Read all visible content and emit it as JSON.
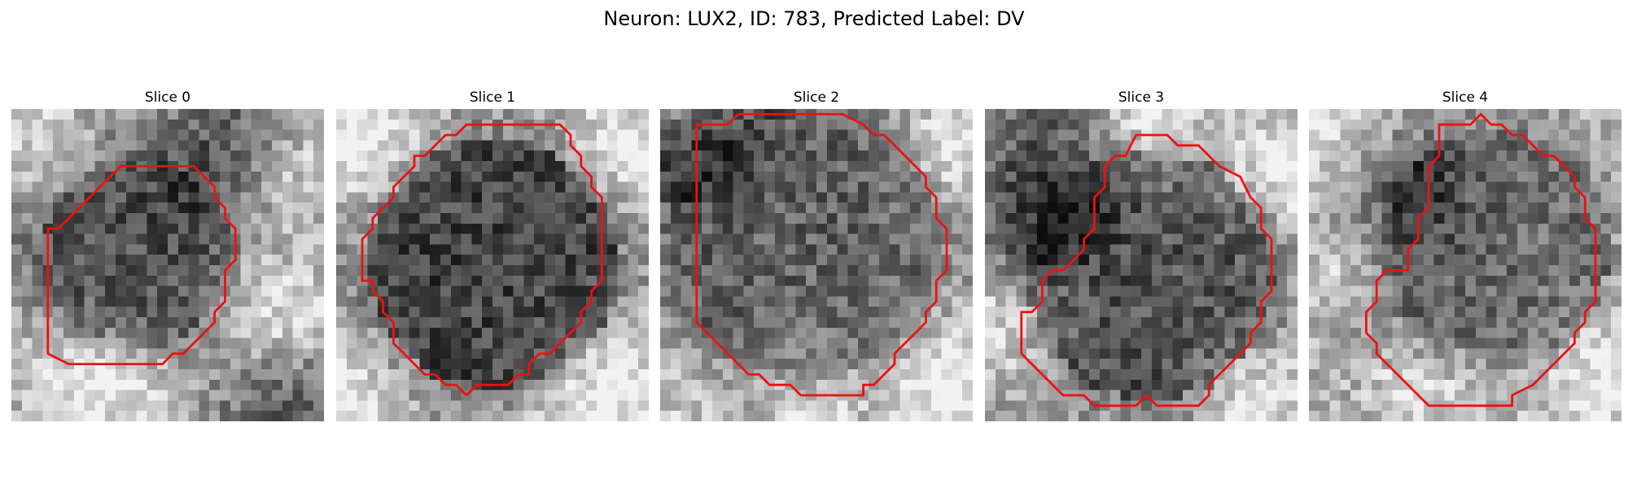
{
  "figure": {
    "title": "Neuron: LUX2, ID: 783, Predicted Label: DV"
  },
  "panels": [
    {
      "title": "Slice 0",
      "contour_color": "#ee1111",
      "base": 0.42,
      "cell": {
        "cx": 12,
        "cy": 14,
        "r": 9,
        "dark": -0.12
      },
      "bright": [
        {
          "cx": 3,
          "cy": 3,
          "r": 4,
          "v": 0.3
        },
        {
          "cx": 28,
          "cy": 6,
          "r": 4,
          "v": 0.25
        },
        {
          "cx": 4,
          "cy": 26,
          "r": 5,
          "v": 0.25
        },
        {
          "cx": 26,
          "cy": 20,
          "r": 5,
          "v": 0.35
        },
        {
          "cx": 11,
          "cy": 27,
          "r": 4,
          "v": 0.3
        }
      ],
      "dark": [
        {
          "cx": 20,
          "cy": 4,
          "r": 4,
          "v": -0.2
        },
        {
          "cx": 26,
          "cy": 27,
          "r": 4,
          "v": -0.25
        }
      ],
      "contour": [
        [
          10.5,
          5.5
        ],
        [
          17.5,
          5.5
        ],
        [
          19.5,
          7.5
        ],
        [
          19.5,
          8.5
        ],
        [
          20.5,
          9.5
        ],
        [
          20.5,
          10.5
        ],
        [
          21.5,
          11.5
        ],
        [
          21.5,
          14.5
        ],
        [
          20.5,
          15.5
        ],
        [
          20.5,
          18.5
        ],
        [
          19.5,
          19.5
        ],
        [
          19.5,
          20.5
        ],
        [
          18.5,
          21.5
        ],
        [
          16.5,
          23.5
        ],
        [
          15.5,
          23.5
        ],
        [
          14.5,
          24.5
        ],
        [
          5.5,
          24.5
        ],
        [
          3.5,
          23.5
        ],
        [
          3.5,
          11.5
        ],
        [
          4.5,
          11.5
        ],
        [
          9.5,
          6.5
        ]
      ]
    },
    {
      "title": "Slice 1",
      "contour_color": "#ee1111",
      "base": 0.5,
      "cell": {
        "cx": 15,
        "cy": 15,
        "r": 12,
        "dark": -0.25
      },
      "bright": [
        {
          "cx": 2,
          "cy": 2,
          "r": 5,
          "v": 0.35
        },
        {
          "cx": 28,
          "cy": 3,
          "r": 4,
          "v": 0.3
        },
        {
          "cx": 1,
          "cy": 28,
          "r": 4,
          "v": 0.3
        },
        {
          "cx": 26,
          "cy": 27,
          "r": 5,
          "v": 0.35
        }
      ],
      "dark": [],
      "contour": [
        [
          12.5,
          1.5
        ],
        [
          21.5,
          1.5
        ],
        [
          22.5,
          2.5
        ],
        [
          22.5,
          3.5
        ],
        [
          23.5,
          4.5
        ],
        [
          23.5,
          5.5
        ],
        [
          24.5,
          6.5
        ],
        [
          24.5,
          7.5
        ],
        [
          25.5,
          8.5
        ],
        [
          25.5,
          16.5
        ],
        [
          24.5,
          17.5
        ],
        [
          24.5,
          18.5
        ],
        [
          23.5,
          19.5
        ],
        [
          23.5,
          20.5
        ],
        [
          22.5,
          21.5
        ],
        [
          21.5,
          22.5
        ],
        [
          20.5,
          23.5
        ],
        [
          19.5,
          23.5
        ],
        [
          18.5,
          24.5
        ],
        [
          18.5,
          25.5
        ],
        [
          17.5,
          25.5
        ],
        [
          16.5,
          26.5
        ],
        [
          13.5,
          26.5
        ],
        [
          12.5,
          27.5
        ],
        [
          11.5,
          26.5
        ],
        [
          10.5,
          26.5
        ],
        [
          9.5,
          25.5
        ],
        [
          8.5,
          25.5
        ],
        [
          7.5,
          24.5
        ],
        [
          6.5,
          23.5
        ],
        [
          5.5,
          22.5
        ],
        [
          5.5,
          20.5
        ],
        [
          4.5,
          19.5
        ],
        [
          4.5,
          18.5
        ],
        [
          3.5,
          17.5
        ],
        [
          3.5,
          16.5
        ],
        [
          2.5,
          16.5
        ],
        [
          2.5,
          12.5
        ],
        [
          3.5,
          11.5
        ],
        [
          3.5,
          10.5
        ],
        [
          4.5,
          9.5
        ],
        [
          5.5,
          8.5
        ],
        [
          5.5,
          7.5
        ],
        [
          6.5,
          6.5
        ],
        [
          7.5,
          5.5
        ],
        [
          7.5,
          4.5
        ],
        [
          8.5,
          4.5
        ],
        [
          9.5,
          3.5
        ],
        [
          10.5,
          2.5
        ],
        [
          11.5,
          2.5
        ]
      ]
    },
    {
      "title": "Slice 2",
      "contour_color": "#ee1111",
      "base": 0.48,
      "cell": {
        "cx": 14,
        "cy": 13,
        "r": 13,
        "dark": -0.1
      },
      "bright": [
        {
          "cx": 28,
          "cy": 4,
          "r": 4,
          "v": 0.3
        },
        {
          "cx": 28,
          "cy": 26,
          "r": 5,
          "v": 0.35
        },
        {
          "cx": 2,
          "cy": 28,
          "r": 3,
          "v": 0.2
        },
        {
          "cx": 14,
          "cy": 28,
          "r": 4,
          "v": 0.25
        }
      ],
      "dark": [
        {
          "cx": 1,
          "cy": 6,
          "r": 3,
          "v": -0.25
        },
        {
          "cx": 6,
          "cy": 2,
          "r": 3,
          "v": -0.2
        }
      ],
      "contour": [
        [
          3.5,
          1.5
        ],
        [
          6.5,
          1.5
        ],
        [
          7.5,
          0.5
        ],
        [
          17.5,
          0.5
        ],
        [
          19.5,
          1.5
        ],
        [
          19.5,
          1.5
        ],
        [
          20.5,
          2.5
        ],
        [
          21.5,
          2.5
        ],
        [
          22.5,
          3.5
        ],
        [
          23.5,
          4.5
        ],
        [
          24.5,
          5.5
        ],
        [
          25.5,
          6.5
        ],
        [
          25.5,
          7.5
        ],
        [
          26.5,
          8.5
        ],
        [
          26.5,
          10.5
        ],
        [
          27.5,
          11.5
        ],
        [
          27.5,
          15.5
        ],
        [
          26.5,
          16.5
        ],
        [
          26.5,
          18.5
        ],
        [
          25.5,
          19.5
        ],
        [
          25.5,
          20.5
        ],
        [
          24.5,
          21.5
        ],
        [
          23.5,
          22.5
        ],
        [
          22.5,
          23.5
        ],
        [
          22.5,
          24.5
        ],
        [
          21.5,
          25.5
        ],
        [
          20.5,
          26.5
        ],
        [
          19.5,
          26.5
        ],
        [
          19.5,
          27.5
        ],
        [
          13.5,
          27.5
        ],
        [
          12.5,
          26.5
        ],
        [
          10.5,
          26.5
        ],
        [
          9.5,
          25.5
        ],
        [
          8.5,
          25.5
        ],
        [
          7.5,
          24.5
        ],
        [
          6.5,
          23.5
        ],
        [
          5.5,
          22.5
        ],
        [
          4.5,
          21.5
        ],
        [
          3.5,
          20.5
        ],
        [
          3.5,
          1.5
        ]
      ]
    },
    {
      "title": "Slice 3",
      "contour_color": "#ee1111",
      "base": 0.5,
      "cell": {
        "cx": 16,
        "cy": 16,
        "r": 12,
        "dark": -0.18
      },
      "bright": [
        {
          "cx": 16,
          "cy": 2,
          "r": 4,
          "v": 0.3
        },
        {
          "cx": 28,
          "cy": 6,
          "r": 4,
          "v": 0.3
        },
        {
          "cx": 2,
          "cy": 20,
          "r": 4,
          "v": 0.25
        },
        {
          "cx": 26,
          "cy": 28,
          "r": 4,
          "v": 0.3
        }
      ],
      "dark": [
        {
          "cx": 6,
          "cy": 5,
          "r": 5,
          "v": -0.3
        },
        {
          "cx": 3,
          "cy": 12,
          "r": 4,
          "v": -0.2
        }
      ],
      "contour": [
        [
          14.5,
          2.5
        ],
        [
          17.5,
          2.5
        ],
        [
          18.5,
          3.5
        ],
        [
          20.5,
          3.5
        ],
        [
          21.5,
          4.5
        ],
        [
          22.5,
          5.5
        ],
        [
          24.5,
          6.5
        ],
        [
          25.5,
          8.5
        ],
        [
          26.5,
          9.5
        ],
        [
          26.5,
          11.5
        ],
        [
          27.5,
          12.5
        ],
        [
          27.5,
          17.5
        ],
        [
          26.5,
          18.5
        ],
        [
          26.5,
          20.5
        ],
        [
          25.5,
          21.5
        ],
        [
          25.5,
          22.5
        ],
        [
          24.5,
          23.5
        ],
        [
          23.5,
          24.5
        ],
        [
          22.5,
          25.5
        ],
        [
          21.5,
          26.5
        ],
        [
          21.5,
          27.5
        ],
        [
          20.5,
          28.5
        ],
        [
          19.5,
          28.5
        ],
        [
          20.5,
          28.5
        ],
        [
          18.5,
          28.5
        ],
        [
          16.5,
          28.5
        ],
        [
          15.5,
          27.5
        ],
        [
          14.5,
          28.5
        ],
        [
          13.5,
          28.5
        ],
        [
          12.5,
          28.5
        ],
        [
          10.5,
          28.5
        ],
        [
          9.5,
          27.5
        ],
        [
          7.5,
          27.5
        ],
        [
          5.5,
          25.5
        ],
        [
          3.5,
          23.5
        ],
        [
          3.5,
          19.5
        ],
        [
          4.5,
          19.5
        ],
        [
          5.5,
          18.5
        ],
        [
          5.5,
          16.5
        ],
        [
          6.5,
          15.5
        ],
        [
          7.5,
          15.5
        ],
        [
          8.5,
          14.5
        ],
        [
          9.5,
          13.5
        ],
        [
          9.5,
          12.5
        ],
        [
          10.5,
          11.5
        ],
        [
          10.5,
          8.5
        ],
        [
          11.5,
          7.5
        ],
        [
          11.5,
          5.5
        ],
        [
          12.5,
          4.5
        ],
        [
          13.5,
          4.5
        ],
        [
          14.5,
          2.5
        ]
      ]
    },
    {
      "title": "Slice 4",
      "contour_color": "#ee1111",
      "base": 0.58,
      "cell": {
        "cx": 18,
        "cy": 13,
        "r": 11,
        "dark": -0.15
      },
      "bright": [
        {
          "cx": 2,
          "cy": 2,
          "r": 4,
          "v": 0.25
        },
        {
          "cx": 4,
          "cy": 16,
          "r": 4,
          "v": 0.2
        },
        {
          "cx": 28,
          "cy": 26,
          "r": 4,
          "v": 0.25
        },
        {
          "cx": 10,
          "cy": 27,
          "r": 3,
          "v": 0.2
        }
      ],
      "dark": [
        {
          "cx": 8,
          "cy": 8,
          "r": 5,
          "v": -0.28
        },
        {
          "cx": 6,
          "cy": 20,
          "r": 4,
          "v": -0.15
        }
      ],
      "contour": [
        [
          12.5,
          1.5
        ],
        [
          15.5,
          1.5
        ],
        [
          16.5,
          0.5
        ],
        [
          17.5,
          1.5
        ],
        [
          18.5,
          1.5
        ],
        [
          19.5,
          2.5
        ],
        [
          20.5,
          2.5
        ],
        [
          21.5,
          3.5
        ],
        [
          22.5,
          4.5
        ],
        [
          23.5,
          4.5
        ],
        [
          24.5,
          5.5
        ],
        [
          25.5,
          6.5
        ],
        [
          25.5,
          7.5
        ],
        [
          26.5,
          8.5
        ],
        [
          26.5,
          10.5
        ],
        [
          27.5,
          11.5
        ],
        [
          27.5,
          18.5
        ],
        [
          26.5,
          19.5
        ],
        [
          26.5,
          20.5
        ],
        [
          25.5,
          21.5
        ],
        [
          25.5,
          22.5
        ],
        [
          24.5,
          23.5
        ],
        [
          23.5,
          24.5
        ],
        [
          22.5,
          25.5
        ],
        [
          21.5,
          26.5
        ],
        [
          19.5,
          27.5
        ],
        [
          19.5,
          28.5
        ],
        [
          18.5,
          28.5
        ],
        [
          11.5,
          28.5
        ],
        [
          10.5,
          27.5
        ],
        [
          9.5,
          26.5
        ],
        [
          8.5,
          25.5
        ],
        [
          7.5,
          24.5
        ],
        [
          6.5,
          23.5
        ],
        [
          6.5,
          22.5
        ],
        [
          5.5,
          21.5
        ],
        [
          5.5,
          19.5
        ],
        [
          6.5,
          18.5
        ],
        [
          6.5,
          16.5
        ],
        [
          7.5,
          15.5
        ],
        [
          9.5,
          15.5
        ],
        [
          9.5,
          13.5
        ],
        [
          10.5,
          12.5
        ],
        [
          10.5,
          10.5
        ],
        [
          11.5,
          9.5
        ],
        [
          11.5,
          5.5
        ],
        [
          12.5,
          4.5
        ],
        [
          12.5,
          1.5
        ]
      ]
    }
  ]
}
